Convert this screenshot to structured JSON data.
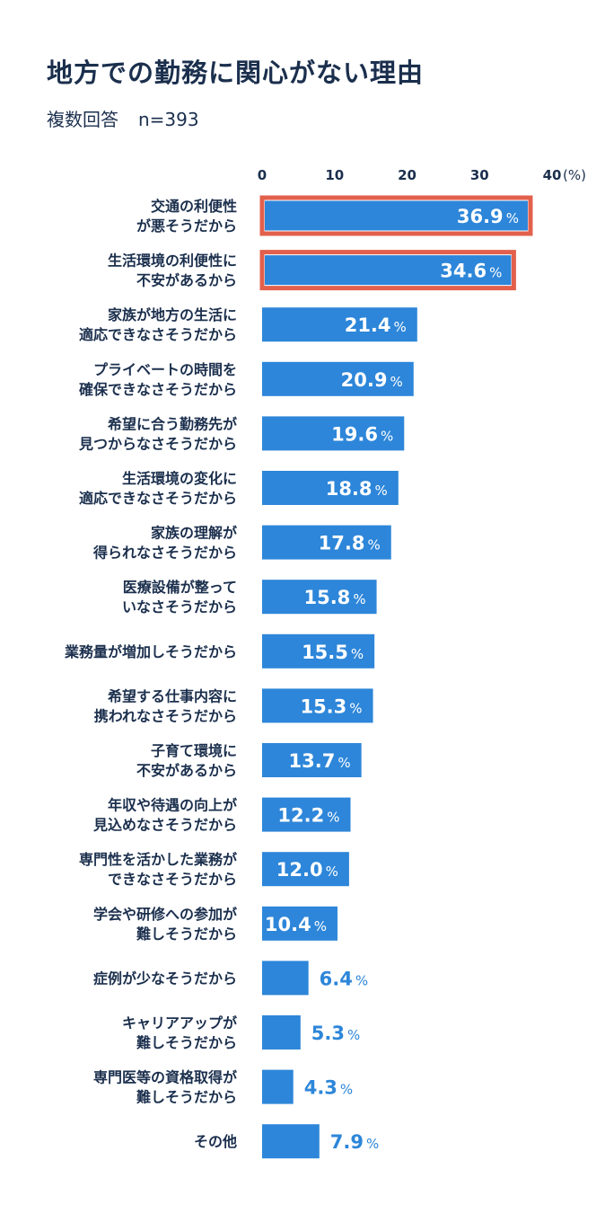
{
  "chart_data": {
    "type": "bar",
    "orientation": "horizontal",
    "title": "地方での勤務に関心がない理由",
    "subtitle": "複数回答",
    "sample_size": "n=393",
    "unit": "(%)",
    "percent_sign": "%",
    "xlim": [
      0,
      40
    ],
    "x_ticks": [
      "0",
      "10",
      "20",
      "30",
      "40"
    ],
    "bar_color": "#2d86d9",
    "highlight_color": "#e2604c",
    "label_color": "#1b2f4d",
    "categories": [
      [
        "交通の利便性",
        "が悪そうだから"
      ],
      [
        "生活環境の利便性に",
        "不安があるから"
      ],
      [
        "家族が地方の生活に",
        "適応できなさそうだから"
      ],
      [
        "プライベートの時間を",
        "確保できなさそうだから"
      ],
      [
        "希望に合う勤務先が",
        "見つからなさそうだから"
      ],
      [
        "生活環境の変化に",
        "適応できなさそうだから"
      ],
      [
        "家族の理解が",
        "得られなさそうだから"
      ],
      [
        "医療設備が整って",
        "いなさそうだから"
      ],
      [
        "業務量が増加しそうだから"
      ],
      [
        "希望する仕事内容に",
        "携われなさそうだから"
      ],
      [
        "子育て環境に",
        "不安があるから"
      ],
      [
        "年収や待遇の向上が",
        "見込めなさそうだから"
      ],
      [
        "専門性を活かした業務が",
        "できなさそうだから"
      ],
      [
        "学会や研修への参加が",
        "難しそうだから"
      ],
      [
        "症例が少なそうだから"
      ],
      [
        "キャリアアップが",
        "難しそうだから"
      ],
      [
        "専門医等の資格取得が",
        "難しそうだから"
      ],
      [
        "その他"
      ]
    ],
    "values": [
      36.9,
      34.6,
      21.4,
      20.9,
      19.6,
      18.8,
      17.8,
      15.8,
      15.5,
      15.3,
      13.7,
      12.2,
      12.0,
      10.4,
      6.4,
      5.3,
      4.3,
      7.9
    ],
    "value_labels": [
      "36.9",
      "34.6",
      "21.4",
      "20.9",
      "19.6",
      "18.8",
      "17.8",
      "15.8",
      "15.5",
      "15.3",
      "13.7",
      "12.2",
      "12.0",
      "10.4",
      "6.4",
      "5.3",
      "4.3",
      "7.9"
    ],
    "highlighted": [
      true,
      true,
      false,
      false,
      false,
      false,
      false,
      false,
      false,
      false,
      false,
      false,
      false,
      false,
      false,
      false,
      false,
      false
    ],
    "label_inside": [
      true,
      true,
      true,
      true,
      true,
      true,
      true,
      true,
      true,
      true,
      true,
      true,
      true,
      true,
      false,
      false,
      false,
      false
    ]
  }
}
